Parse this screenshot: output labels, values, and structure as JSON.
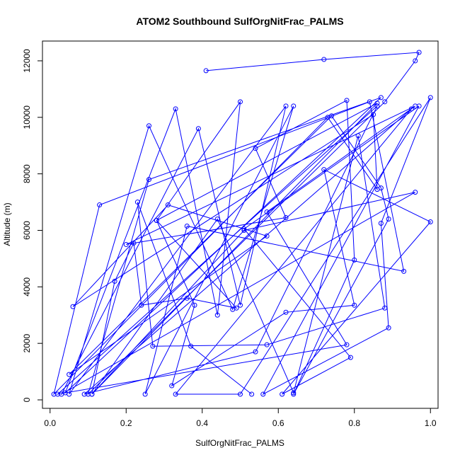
{
  "chart_data": {
    "type": "line",
    "title": "ATOM2 Southbound SulfOrgNitFrac_PALMS",
    "xlabel": "SulfOrgNitFrac_PALMS",
    "ylabel": "Altitude (m)",
    "xlim": [
      -0.02,
      1.02
    ],
    "ylim": [
      -300,
      12700
    ],
    "xticks": [
      0.0,
      0.2,
      0.4,
      0.6,
      0.8,
      1.0
    ],
    "xtick_labels": [
      "0.0",
      "0.2",
      "0.4",
      "0.6",
      "0.8",
      "1.0"
    ],
    "yticks": [
      0,
      2000,
      4000,
      6000,
      8000,
      10000,
      12000
    ],
    "ytick_labels": [
      "0",
      "2000",
      "4000",
      "6000",
      "8000",
      "10000",
      "12000"
    ],
    "grid": false,
    "legend": "none",
    "series_color": "#0000ff",
    "marker": "open-circle",
    "points": [
      {
        "x": 0.41,
        "y": 11650
      },
      {
        "x": 0.72,
        "y": 12050
      },
      {
        "x": 0.97,
        "y": 12300
      },
      {
        "x": 0.96,
        "y": 12000
      },
      {
        "x": 0.88,
        "y": 10550
      },
      {
        "x": 0.1,
        "y": 200
      },
      {
        "x": 0.26,
        "y": 7800
      },
      {
        "x": 0.87,
        "y": 10700
      },
      {
        "x": 0.04,
        "y": 250
      },
      {
        "x": 0.33,
        "y": 10300
      },
      {
        "x": 0.44,
        "y": 3000
      },
      {
        "x": 0.5,
        "y": 10550
      },
      {
        "x": 0.28,
        "y": 6350
      },
      {
        "x": 0.86,
        "y": 10500
      },
      {
        "x": 0.11,
        "y": 200
      },
      {
        "x": 0.51,
        "y": 6000
      },
      {
        "x": 0.96,
        "y": 7350
      },
      {
        "x": 0.03,
        "y": 200
      },
      {
        "x": 0.39,
        "y": 9600
      },
      {
        "x": 0.5,
        "y": 3350
      },
      {
        "x": 0.62,
        "y": 10400
      },
      {
        "x": 0.05,
        "y": 200
      },
      {
        "x": 0.26,
        "y": 9700
      },
      {
        "x": 0.48,
        "y": 3200
      },
      {
        "x": 0.64,
        "y": 10400
      },
      {
        "x": 0.25,
        "y": 200
      },
      {
        "x": 0.36,
        "y": 6150
      },
      {
        "x": 0.93,
        "y": 4550
      },
      {
        "x": 0.84,
        "y": 10550
      },
      {
        "x": 0.13,
        "y": 6900
      },
      {
        "x": 0.01,
        "y": 200
      },
      {
        "x": 0.73,
        "y": 10000
      },
      {
        "x": 0.86,
        "y": 7450
      },
      {
        "x": 0.85,
        "y": 10100
      },
      {
        "x": 0.06,
        "y": 3300
      },
      {
        "x": 0.31,
        "y": 6900
      },
      {
        "x": 0.57,
        "y": 5800
      },
      {
        "x": 0.05,
        "y": 900
      },
      {
        "x": 0.74,
        "y": 10050
      },
      {
        "x": 0.87,
        "y": 7500
      },
      {
        "x": 0.89,
        "y": 6400
      },
      {
        "x": 0.64,
        "y": 200
      },
      {
        "x": 0.8,
        "y": 4950
      },
      {
        "x": 0.78,
        "y": 10600
      },
      {
        "x": 0.54,
        "y": 8900
      },
      {
        "x": 0.62,
        "y": 6450
      },
      {
        "x": 0.2,
        "y": 5500
      },
      {
        "x": 0.96,
        "y": 10400
      },
      {
        "x": 0.57,
        "y": 6650
      },
      {
        "x": 0.78,
        "y": 1950
      },
      {
        "x": 0.02,
        "y": 200
      },
      {
        "x": 0.86,
        "y": 10400
      },
      {
        "x": 0.54,
        "y": 1700
      },
      {
        "x": 0.09,
        "y": 200
      },
      {
        "x": 0.95,
        "y": 10300
      },
      {
        "x": 0.33,
        "y": 200
      },
      {
        "x": 0.5,
        "y": 200
      },
      {
        "x": 1.0,
        "y": 10700
      },
      {
        "x": 0.87,
        "y": 6250
      },
      {
        "x": 0.89,
        "y": 2550
      },
      {
        "x": 0.56,
        "y": 200
      },
      {
        "x": 0.97,
        "y": 10400
      },
      {
        "x": 0.51,
        "y": 6050
      },
      {
        "x": 0.79,
        "y": 1500
      },
      {
        "x": 0.61,
        "y": 200
      },
      {
        "x": 1.0,
        "y": 6300
      },
      {
        "x": 0.72,
        "y": 8150
      },
      {
        "x": 0.8,
        "y": 3350
      },
      {
        "x": 0.62,
        "y": 3100
      },
      {
        "x": 0.32,
        "y": 500
      },
      {
        "x": 0.38,
        "y": 3350
      },
      {
        "x": 0.28,
        "y": 6350
      },
      {
        "x": 0.49,
        "y": 3250
      },
      {
        "x": 0.36,
        "y": 3600
      },
      {
        "x": 0.24,
        "y": 3350
      },
      {
        "x": 0.22,
        "y": 5550
      },
      {
        "x": 0.17,
        "y": 4200
      },
      {
        "x": 0.11,
        "y": 200
      },
      {
        "x": 0.44,
        "y": 6400
      },
      {
        "x": 0.64,
        "y": 250
      },
      {
        "x": 0.81,
        "y": 9350
      },
      {
        "x": 0.88,
        "y": 3250
      },
      {
        "x": 0.57,
        "y": 1950
      },
      {
        "x": 0.27,
        "y": 1900
      },
      {
        "x": 0.23,
        "y": 7000
      },
      {
        "x": 0.37,
        "y": 1900
      },
      {
        "x": 0.53,
        "y": 200
      }
    ]
  }
}
